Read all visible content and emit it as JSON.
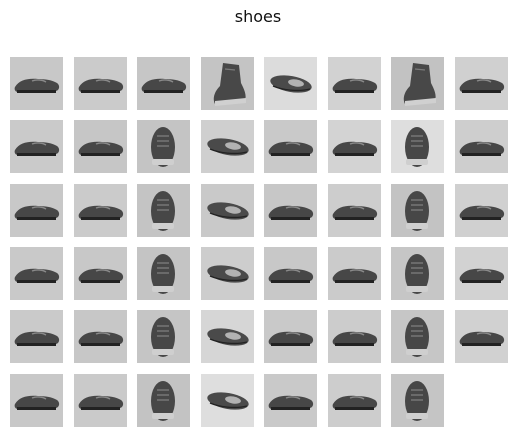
{
  "title": "shoes",
  "tiles": [
    {
      "view": "side",
      "bg": "#c8c8c8"
    },
    {
      "view": "side",
      "bg": "#cbcbcb"
    },
    {
      "view": "side",
      "bg": "#c6c6c6"
    },
    {
      "view": "boot",
      "bg": "#c4c4c4"
    },
    {
      "view": "angled",
      "bg": "#dcdcdc"
    },
    {
      "view": "side",
      "bg": "#d2d2d2"
    },
    {
      "view": "boot",
      "bg": "#c2c2c2"
    },
    {
      "view": "side",
      "bg": "#d0d0d0"
    },
    {
      "view": "side",
      "bg": "#cacaca"
    },
    {
      "view": "side",
      "bg": "#c6c6c6"
    },
    {
      "view": "front",
      "bg": "#c4c4c4"
    },
    {
      "view": "angled",
      "bg": "#cfcfcf"
    },
    {
      "view": "side",
      "bg": "#c9c9c9"
    },
    {
      "view": "side",
      "bg": "#d3d3d3"
    },
    {
      "view": "front",
      "bg": "#dedede"
    },
    {
      "view": "side",
      "bg": "#cecece"
    },
    {
      "view": "side",
      "bg": "#c8c8c8"
    },
    {
      "view": "side",
      "bg": "#cbcbcb"
    },
    {
      "view": "front",
      "bg": "#c4c4c4"
    },
    {
      "view": "angled",
      "bg": "#c9c9c9"
    },
    {
      "view": "side",
      "bg": "#c7c7c7"
    },
    {
      "view": "side",
      "bg": "#cdcdcd"
    },
    {
      "view": "front",
      "bg": "#c3c3c3"
    },
    {
      "view": "side",
      "bg": "#d0d0d0"
    },
    {
      "view": "side",
      "bg": "#c9c9c9"
    },
    {
      "view": "side",
      "bg": "#c8c8c8"
    },
    {
      "view": "front",
      "bg": "#c4c4c4"
    },
    {
      "view": "angled",
      "bg": "#cdcdcd"
    },
    {
      "view": "side",
      "bg": "#c8c8c8"
    },
    {
      "view": "side",
      "bg": "#cbcbcb"
    },
    {
      "view": "front",
      "bg": "#c6c6c6"
    },
    {
      "view": "side",
      "bg": "#d2d2d2"
    },
    {
      "view": "side",
      "bg": "#cacaca"
    },
    {
      "view": "side",
      "bg": "#c7c7c7"
    },
    {
      "view": "front",
      "bg": "#c5c5c5"
    },
    {
      "view": "angled",
      "bg": "#d6d6d6"
    },
    {
      "view": "side",
      "bg": "#c9c9c9"
    },
    {
      "view": "side",
      "bg": "#cccccc"
    },
    {
      "view": "front",
      "bg": "#c6c6c6"
    },
    {
      "view": "side",
      "bg": "#d1d1d1"
    },
    {
      "view": "side",
      "bg": "#c8c8c8"
    },
    {
      "view": "side",
      "bg": "#cacaca"
    },
    {
      "view": "front",
      "bg": "#c3c3c3"
    },
    {
      "view": "angled",
      "bg": "#dedede"
    },
    {
      "view": "side",
      "bg": "#c9c9c9"
    },
    {
      "view": "side",
      "bg": "#cdcdcd"
    },
    {
      "view": "front",
      "bg": "#c5c5c5"
    }
  ]
}
